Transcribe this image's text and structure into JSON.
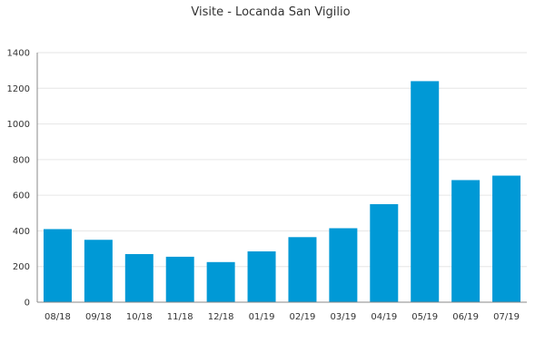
{
  "chart_data": {
    "type": "bar",
    "title": "Visite - Locanda San Vigilio",
    "xlabel": "",
    "ylabel": "",
    "categories": [
      "08/18",
      "09/18",
      "10/18",
      "11/18",
      "12/18",
      "01/19",
      "02/19",
      "03/19",
      "04/19",
      "05/19",
      "06/19",
      "07/19"
    ],
    "values": [
      410,
      350,
      270,
      255,
      225,
      285,
      365,
      415,
      550,
      1240,
      685,
      710
    ],
    "ylim": [
      0,
      1400
    ],
    "yticks": [
      0,
      200,
      400,
      600,
      800,
      1000,
      1200,
      1400
    ],
    "grid": true,
    "legend": "none",
    "bar_color": "#0099d6"
  }
}
